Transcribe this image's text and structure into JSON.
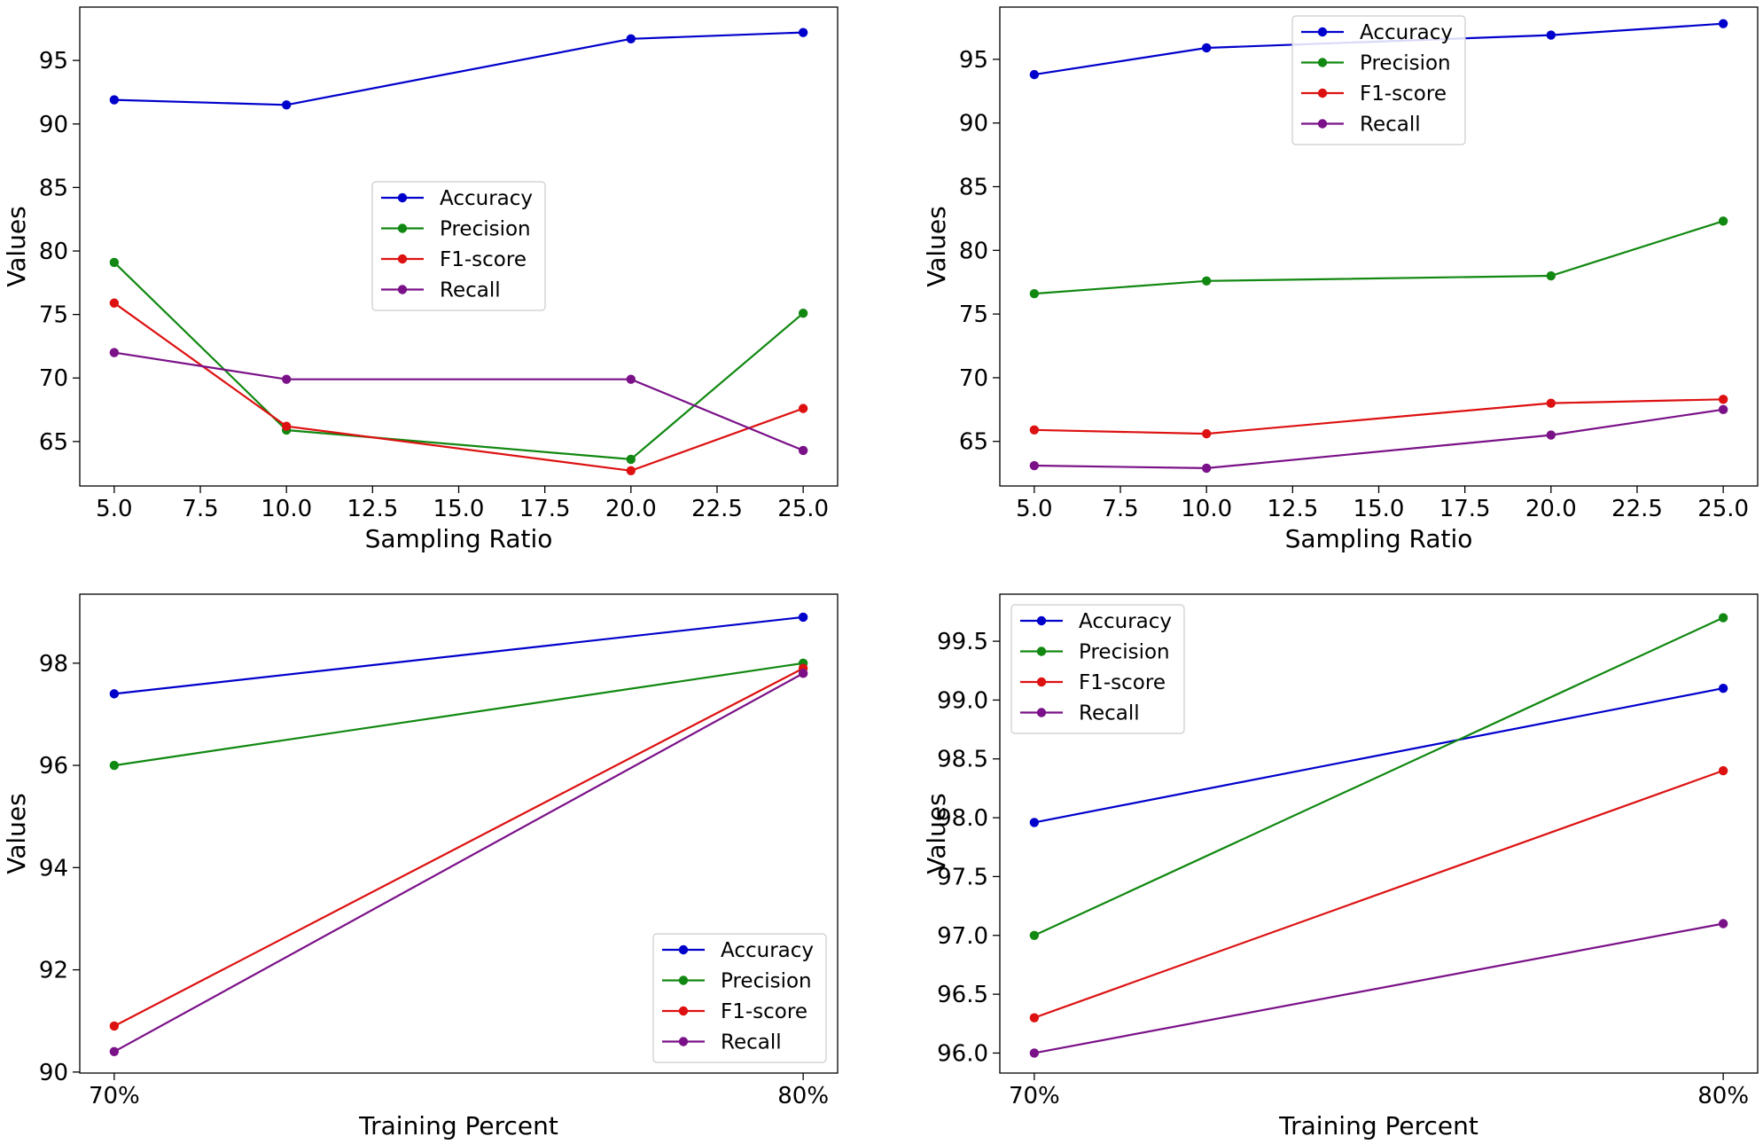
{
  "chart_data": [
    {
      "type": "line",
      "title": "",
      "xlabel": "Sampling Ratio",
      "ylabel": "Values",
      "x": [
        5,
        10,
        20,
        25
      ],
      "xticks": [
        5,
        7.5,
        10,
        12.5,
        15,
        17.5,
        20,
        22.5,
        25
      ],
      "xtick_labels": [
        "5.0",
        "7.5",
        "10.0",
        "12.5",
        "15.0",
        "17.5",
        "20.0",
        "22.5",
        "25.0"
      ],
      "xlim": [
        4.0,
        26.0
      ],
      "yticks": [
        65,
        70,
        75,
        80,
        85,
        90,
        95
      ],
      "ytick_labels": [
        "65",
        "70",
        "75",
        "80",
        "85",
        "90",
        "95"
      ],
      "ylim": [
        61.5,
        99.2
      ],
      "legend": "center",
      "series": [
        {
          "name": "Accuracy",
          "color": "#0000cc",
          "values": [
            91.9,
            91.5,
            96.7,
            97.2
          ]
        },
        {
          "name": "Precision",
          "color": "#118811",
          "values": [
            79.1,
            65.9,
            63.6,
            75.1
          ]
        },
        {
          "name": "F1-score",
          "color": "#dd1111",
          "values": [
            75.9,
            66.2,
            62.7,
            67.6
          ]
        },
        {
          "name": "Recall",
          "color": "#7a1188",
          "values": [
            72.0,
            69.9,
            69.9,
            64.3
          ]
        }
      ]
    },
    {
      "type": "line",
      "title": "",
      "xlabel": "Sampling Ratio",
      "ylabel": "Values",
      "x": [
        5,
        10,
        20,
        25
      ],
      "xticks": [
        5,
        7.5,
        10,
        12.5,
        15,
        17.5,
        20,
        22.5,
        25
      ],
      "xtick_labels": [
        "5.0",
        "7.5",
        "10.0",
        "12.5",
        "15.0",
        "17.5",
        "20.0",
        "22.5",
        "25.0"
      ],
      "xlim": [
        4.0,
        26.0
      ],
      "yticks": [
        65,
        70,
        75,
        80,
        85,
        90,
        95
      ],
      "ytick_labels": [
        "65",
        "70",
        "75",
        "80",
        "85",
        "90",
        "95"
      ],
      "ylim": [
        61.5,
        99.1
      ],
      "legend": "upper center",
      "series": [
        {
          "name": "Accuracy",
          "color": "#0000cc",
          "values": [
            93.8,
            95.9,
            96.9,
            97.8
          ]
        },
        {
          "name": "Precision",
          "color": "#118811",
          "values": [
            76.6,
            77.6,
            78.0,
            82.3
          ]
        },
        {
          "name": "F1-score",
          "color": "#dd1111",
          "values": [
            65.9,
            65.6,
            68.0,
            68.3
          ]
        },
        {
          "name": "Recall",
          "color": "#7a1188",
          "values": [
            63.1,
            62.9,
            65.5,
            67.5
          ]
        }
      ]
    },
    {
      "type": "line",
      "title": "",
      "xlabel": "Training Percent",
      "ylabel": "Values",
      "x": [
        0,
        1
      ],
      "xticks": [
        0,
        1
      ],
      "xtick_labels": [
        "70%",
        "80%"
      ],
      "xlim": [
        -0.05,
        1.05
      ],
      "yticks": [
        90,
        92,
        94,
        96,
        98
      ],
      "ytick_labels": [
        "90",
        "92",
        "94",
        "96",
        "98"
      ],
      "ylim": [
        89.98,
        99.35
      ],
      "legend": "lower right",
      "series": [
        {
          "name": "Accuracy",
          "color": "#0000cc",
          "values": [
            97.4,
            98.9
          ]
        },
        {
          "name": "Precision",
          "color": "#118811",
          "values": [
            96.0,
            98.0
          ]
        },
        {
          "name": "F1-score",
          "color": "#dd1111",
          "values": [
            90.9,
            97.9
          ]
        },
        {
          "name": "Recall",
          "color": "#7a1188",
          "values": [
            90.4,
            97.8
          ]
        }
      ]
    },
    {
      "type": "line",
      "title": "",
      "xlabel": "Training Percent",
      "ylabel": "Values",
      "x": [
        0,
        1
      ],
      "xticks": [
        0,
        1
      ],
      "xtick_labels": [
        "70%",
        "80%"
      ],
      "xlim": [
        -0.05,
        1.05
      ],
      "yticks": [
        96.0,
        96.5,
        97.0,
        97.5,
        98.0,
        98.5,
        99.0,
        99.5
      ],
      "ytick_labels": [
        "96.0",
        "96.5",
        "97.0",
        "97.5",
        "98.0",
        "98.5",
        "99.0",
        "99.5"
      ],
      "ylim": [
        95.83,
        99.9
      ],
      "legend": "upper left",
      "series": [
        {
          "name": "Accuracy",
          "color": "#0000cc",
          "values": [
            97.96,
            99.1
          ]
        },
        {
          "name": "Precision",
          "color": "#118811",
          "values": [
            97.0,
            99.7
          ]
        },
        {
          "name": "F1-score",
          "color": "#dd1111",
          "values": [
            96.3,
            98.4
          ]
        },
        {
          "name": "Recall",
          "color": "#7a1188",
          "values": [
            96.0,
            97.1
          ]
        }
      ]
    }
  ]
}
